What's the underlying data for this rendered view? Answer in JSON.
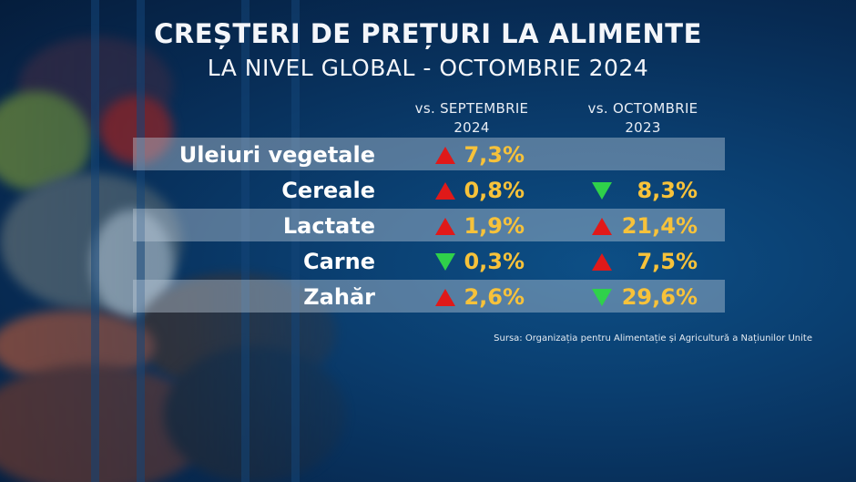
{
  "title": {
    "line1": "CREȘTERI DE PREȚURI LA ALIMENTE",
    "line2": "LA NIVEL GLOBAL - OCTOMBRIE 2024"
  },
  "columns": {
    "sept": {
      "line1": "vs. SEPTEMBRIE",
      "line2": "2024"
    },
    "oct": {
      "line1": "vs. OCTOMBRIE",
      "line2": "2023"
    }
  },
  "rows": [
    {
      "label": "Uleiuri vegetale",
      "sept": {
        "dir": "up",
        "value": "7,3%"
      },
      "oct": null
    },
    {
      "label": "Cereale",
      "sept": {
        "dir": "up",
        "value": "0,8%"
      },
      "oct": {
        "dir": "down",
        "value": "8,3%"
      }
    },
    {
      "label": "Lactate",
      "sept": {
        "dir": "up",
        "value": "1,9%"
      },
      "oct": {
        "dir": "up",
        "value": "21,4%"
      }
    },
    {
      "label": "Carne",
      "sept": {
        "dir": "down",
        "value": "0,3%"
      },
      "oct": {
        "dir": "up",
        "value": "7,5%"
      }
    },
    {
      "label": "Zahăr",
      "sept": {
        "dir": "up",
        "value": "2,6%"
      },
      "oct": {
        "dir": "down",
        "value": "29,6%"
      }
    }
  ],
  "source": "Sursa: Organizația pentru Alimentație și Agricultură a Națiunilor Unite",
  "colors": {
    "up": "#e01919",
    "down": "#2fd14a",
    "value": "#f7c23a",
    "background": "#0a3d6e"
  }
}
